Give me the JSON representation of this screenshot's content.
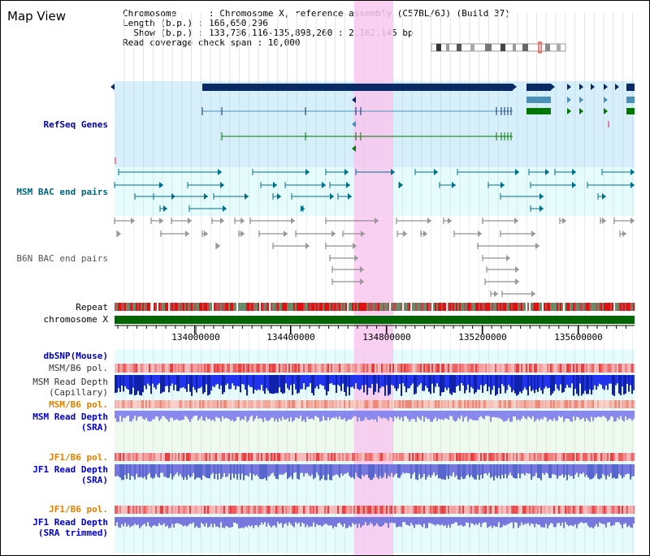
{
  "title": "Map View",
  "info": {
    "chromosome_key": "Chromosome",
    "chromosome_val": ": Chromosome X, reference assembly (C57BL/6J) (Build 37)",
    "length_key": "Length (b.p.)",
    "length_val": ": 166,650,296",
    "show_key": "Show (b.p.)",
    "show_val": ": 133,736,116-135,898,260 : 2,162,145 bp",
    "span_text": "Read coverage check span : 10,000"
  },
  "tracks": {
    "refseq": "RefSeq Genes",
    "msm_bac": "MSM BAC end pairs",
    "b6n_bac": "B6N BAC end pairs",
    "repeat": "Repeat",
    "chromosome": "chromosome X",
    "dbsnp": "dbSNP(Mouse)",
    "msm_pol_1": "MSM/B6 pol.",
    "msm_depth_cap_1": "MSM Read Depth",
    "msm_depth_cap_2": "(Capillary)",
    "msm_pol_2": "MSM/B6 pol.",
    "msm_depth_sra_1": "MSM Read Depth",
    "msm_depth_sra_2": "(SRA)",
    "jf1_pol_1": "JF1/B6 pol.",
    "jf1_depth_sra_1": "JF1 Read Depth",
    "jf1_depth_sra_2": "(SRA)",
    "jf1_pol_2": "JF1/B6 pol.",
    "jf1_depth_trim_1": "JF1 Read Depth",
    "jf1_depth_trim_2": "(SRA trimmed)"
  },
  "axis": {
    "ticks": [
      "134000000",
      "134400000",
      "134800000",
      "135200000",
      "135600000"
    ]
  },
  "colors": {
    "refseq_label": "#0000aa",
    "msm_label": "#006677",
    "b6n_label": "#555555",
    "orange_label": "#e08000",
    "blue_label": "#0000cc",
    "highlight": "#f8c8ef",
    "depth_blue": "#2233ee",
    "depth_light": "#8888ee",
    "chrom_green": "#006600"
  }
}
